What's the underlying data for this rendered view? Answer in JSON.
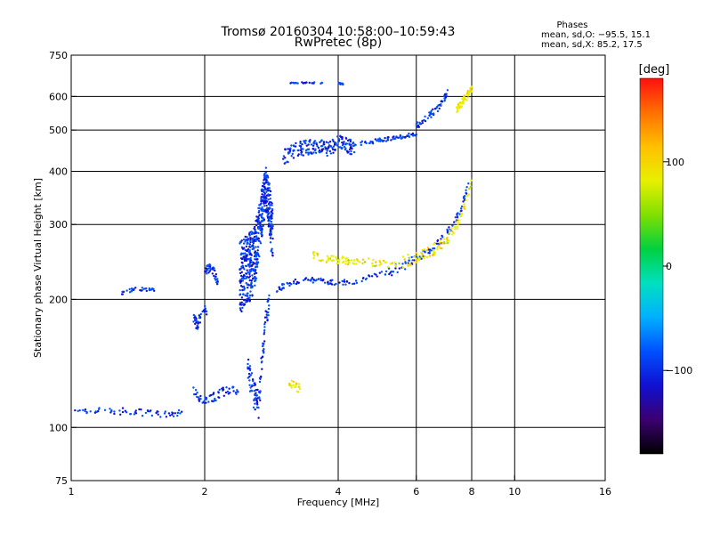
{
  "header": {
    "title_line1": "Tromsø 20160304 10:58:00–10:59:43",
    "title_line2": "RwPretec (8p)",
    "phases_title": "Phases",
    "phases_line1": "mean, sd,O: −95.5, 15.1",
    "phases_line2": "mean, sd,X: 85.2, 17.5"
  },
  "chart_data": {
    "type": "scatter",
    "xlabel": "Frequency [MHz]",
    "ylabel": "Stationary phase Virtual Height [km]",
    "x_scale": "log2",
    "y_scale": "log",
    "xlim": [
      1,
      16
    ],
    "ylim": [
      75,
      750
    ],
    "x_ticks": [
      1,
      2,
      4,
      6,
      8,
      10,
      16
    ],
    "x_tick_labels": [
      "1",
      "2",
      "4",
      "6",
      "8",
      "10",
      "16"
    ],
    "y_ticks": [
      75,
      100,
      200,
      300,
      400,
      500,
      600,
      750
    ],
    "y_tick_labels": [
      "75",
      "100",
      "200",
      "300",
      "400",
      "500",
      "600",
      "750"
    ],
    "grid_x": [
      2,
      4,
      6,
      8,
      10
    ],
    "grid_y": [
      100,
      200,
      300,
      400,
      500,
      600
    ],
    "colorbar": {
      "label": "[deg]",
      "range": [
        -180,
        180
      ],
      "ticks": [
        100,
        0,
        -100
      ],
      "tick_labels": [
        "100",
        "0",
        "−100"
      ],
      "colors": [
        "#000000",
        "#3b0070",
        "#1010d0",
        "#0050ff",
        "#00b0ff",
        "#00e0c0",
        "#00d040",
        "#80e000",
        "#e8f000",
        "#ffc000",
        "#ff7000",
        "#ff1010"
      ]
    },
    "series": [
      {
        "mode": "O",
        "segments": [
          {
            "x": [
              1.02,
              1.1,
              1.2,
              1.3,
              1.4,
              1.5,
              1.6,
              1.7,
              1.78
            ],
            "y": [
              108,
              110,
              109,
              109,
              109,
              108,
              107,
              107,
              109
            ],
            "spread": 2
          },
          {
            "x": [
              1.3,
              1.36,
              1.42,
              1.48,
              1.54
            ],
            "y": [
              207,
              210,
              212,
              211,
              210
            ],
            "spread": 2
          },
          {
            "x": [
              1.88,
              1.95,
              2.02,
              2.1,
              2.2,
              2.3,
              2.38
            ],
            "y": [
              122,
              118,
              116,
              118,
              121,
              123,
              120
            ],
            "spread": 3
          },
          {
            "x": [
              1.88,
              1.92,
              1.96,
              2.02
            ],
            "y": [
              185,
              175,
              180,
              190
            ],
            "spread": 6
          },
          {
            "x": [
              2.0,
              2.05,
              2.1,
              2.14
            ],
            "y": [
              235,
              236,
              232,
              220
            ],
            "spread": 6
          },
          {
            "x": [
              2.4,
              2.45,
              2.5,
              2.55,
              2.6,
              2.65,
              2.7,
              2.75,
              2.8,
              2.85
            ],
            "y": [
              230,
              235,
              240,
              245,
              260,
              290,
              330,
              370,
              330,
              280
            ],
            "spread": 45
          },
          {
            "x": [
              2.5,
              2.55,
              2.6,
              2.65,
              2.7,
              2.75,
              2.8
            ],
            "y": [
              140,
              125,
              118,
              115,
              150,
              180,
              200
            ],
            "spread": 10
          },
          {
            "x": [
              2.9,
              3.0,
              3.2,
              3.4,
              3.6,
              3.8,
              4.0,
              4.3,
              4.7,
              5.2
            ],
            "y": [
              208,
              215,
              220,
              222,
              222,
              220,
              219,
              220,
              225,
              232
            ],
            "spread": 3
          },
          {
            "x": [
              5.2,
              5.6,
              6.0,
              6.4,
              6.8,
              7.2,
              7.6,
              7.9
            ],
            "y": [
              232,
              240,
              250,
              260,
              275,
              295,
              330,
              380
            ],
            "spread": 6
          },
          {
            "x": [
              3.1,
              3.3,
              3.5,
              3.7
            ],
            "y": [
              645,
              646,
              646,
              645
            ],
            "spread": 2
          },
          {
            "x": [
              4.0,
              4.05,
              4.1
            ],
            "y": [
              645,
              643,
              641
            ],
            "spread": 2
          },
          {
            "x": [
              3.0,
              3.2,
              3.4,
              3.6,
              3.8,
              4.0,
              4.2,
              4.4
            ],
            "y": [
              430,
              450,
              455,
              460,
              450,
              470,
              460,
              450
            ],
            "spread": 18
          },
          {
            "x": [
              4.5,
              4.8,
              5.1,
              5.4,
              5.7,
              6.0
            ],
            "y": [
              465,
              470,
              475,
              480,
              485,
              490
            ],
            "spread": 5
          },
          {
            "x": [
              6.0,
              6.4,
              6.8,
              7.1
            ],
            "y": [
              510,
              540,
              570,
              620
            ],
            "spread": 10
          }
        ]
      },
      {
        "mode": "X",
        "segments": [
          {
            "x": [
              3.5,
              3.7,
              3.9,
              4.1,
              4.3,
              4.6,
              5.0,
              5.5
            ],
            "y": [
              255,
              250,
              248,
              247,
              246,
              245,
              243,
              242
            ],
            "spread": 5
          },
          {
            "x": [
              5.6,
              6.0,
              6.4,
              6.8,
              7.2,
              7.6,
              8.0
            ],
            "y": [
              245,
              250,
              258,
              268,
              285,
              315,
              380
            ],
            "spread": 8
          },
          {
            "x": [
              7.4,
              7.6,
              7.8,
              8.0
            ],
            "y": [
              560,
              580,
              600,
              625
            ],
            "spread": 12
          },
          {
            "x": [
              3.1,
              3.2,
              3.3
            ],
            "y": [
              128,
              125,
              123
            ],
            "spread": 3
          }
        ]
      }
    ]
  }
}
